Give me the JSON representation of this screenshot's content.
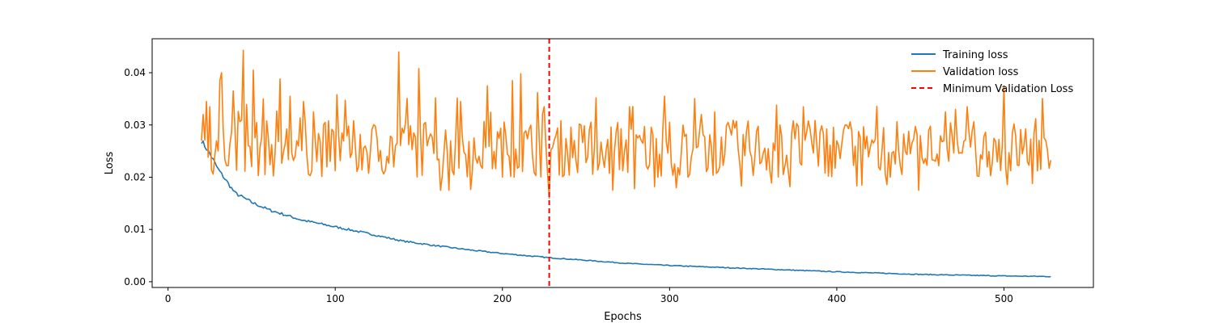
{
  "chart_data": {
    "type": "line",
    "title": "",
    "xlabel": "Epochs",
    "ylabel": "Loss",
    "xlim": [
      -9.5,
      553.5
    ],
    "ylim": [
      -0.0011,
      0.0465
    ],
    "x_ticks": [
      0,
      100,
      200,
      300,
      400,
      500
    ],
    "x_tick_labels": [
      "0",
      "100",
      "200",
      "300",
      "400",
      "500"
    ],
    "y_ticks": [
      0.0,
      0.01,
      0.02,
      0.03,
      0.04
    ],
    "y_tick_labels": [
      "0.00",
      "0.01",
      "0.02",
      "0.03",
      "0.04"
    ],
    "grid": false,
    "legend_position": "top-right",
    "x_start": 20,
    "x_end": 528,
    "series": [
      {
        "name": "Training loss",
        "color": "#1f77b4",
        "style": "solid",
        "x_start": 20,
        "x_end": 528,
        "trend": [
          [
            20,
            0.027
          ],
          [
            25,
            0.0245
          ],
          [
            30,
            0.0215
          ],
          [
            40,
            0.017
          ],
          [
            50,
            0.0152
          ],
          [
            60,
            0.0138
          ],
          [
            80,
            0.0118
          ],
          [
            100,
            0.0105
          ],
          [
            120,
            0.0092
          ],
          [
            140,
            0.0078
          ],
          [
            160,
            0.0069
          ],
          [
            180,
            0.0061
          ],
          [
            200,
            0.0054
          ],
          [
            228,
            0.0046
          ],
          [
            250,
            0.0041
          ],
          [
            275,
            0.0035
          ],
          [
            300,
            0.0031
          ],
          [
            350,
            0.0025
          ],
          [
            400,
            0.0019
          ],
          [
            450,
            0.0014
          ],
          [
            500,
            0.0011
          ],
          [
            528,
            0.001
          ]
        ],
        "noise_amplitude": 0.0004
      },
      {
        "name": "Validation loss",
        "color": "#ff7f0e",
        "style": "solid",
        "x_start": 20,
        "x_end": 528,
        "baseline": 0.0255,
        "noise_amplitude": 0.0055,
        "peaks": [
          [
            21,
            0.032
          ],
          [
            23,
            0.0345
          ],
          [
            25,
            0.0335
          ],
          [
            31,
            0.0385
          ],
          [
            32,
            0.04
          ],
          [
            39,
            0.0365
          ],
          [
            45,
            0.0443
          ],
          [
            51,
            0.0405
          ],
          [
            57,
            0.035
          ],
          [
            67,
            0.0388
          ],
          [
            73,
            0.0355
          ],
          [
            81,
            0.0345
          ],
          [
            87,
            0.0325
          ],
          [
            101,
            0.0358
          ],
          [
            138,
            0.044
          ],
          [
            150,
            0.0408
          ],
          [
            160,
            0.0352
          ],
          [
            175,
            0.0345
          ],
          [
            191,
            0.0375
          ],
          [
            206,
            0.0385
          ],
          [
            211,
            0.0398
          ],
          [
            221,
            0.0362
          ],
          [
            256,
            0.0352
          ],
          [
            276,
            0.0335
          ],
          [
            297,
            0.0355
          ],
          [
            327,
            0.0325
          ],
          [
            364,
            0.0338
          ],
          [
            380,
            0.0335
          ],
          [
            465,
            0.0325
          ],
          [
            478,
            0.0335
          ],
          [
            500,
            0.0375
          ],
          [
            519,
            0.0312
          ]
        ],
        "troughs": [
          [
            163,
            0.0175
          ],
          [
            168,
            0.0175
          ],
          [
            228,
            0.016
          ],
          [
            266,
            0.0175
          ],
          [
            279,
            0.0178
          ],
          [
            291,
            0.0182
          ],
          [
            304,
            0.018
          ],
          [
            343,
            0.0183
          ],
          [
            372,
            0.0182
          ],
          [
            415,
            0.0185
          ],
          [
            430,
            0.0186
          ],
          [
            449,
            0.0175
          ],
          [
            502,
            0.0186
          ],
          [
            517,
            0.0188
          ]
        ]
      },
      {
        "name": "Minimum Validation Loss",
        "color": "#ff0000",
        "style": "dashed",
        "vertical_line_x": 228
      }
    ]
  }
}
